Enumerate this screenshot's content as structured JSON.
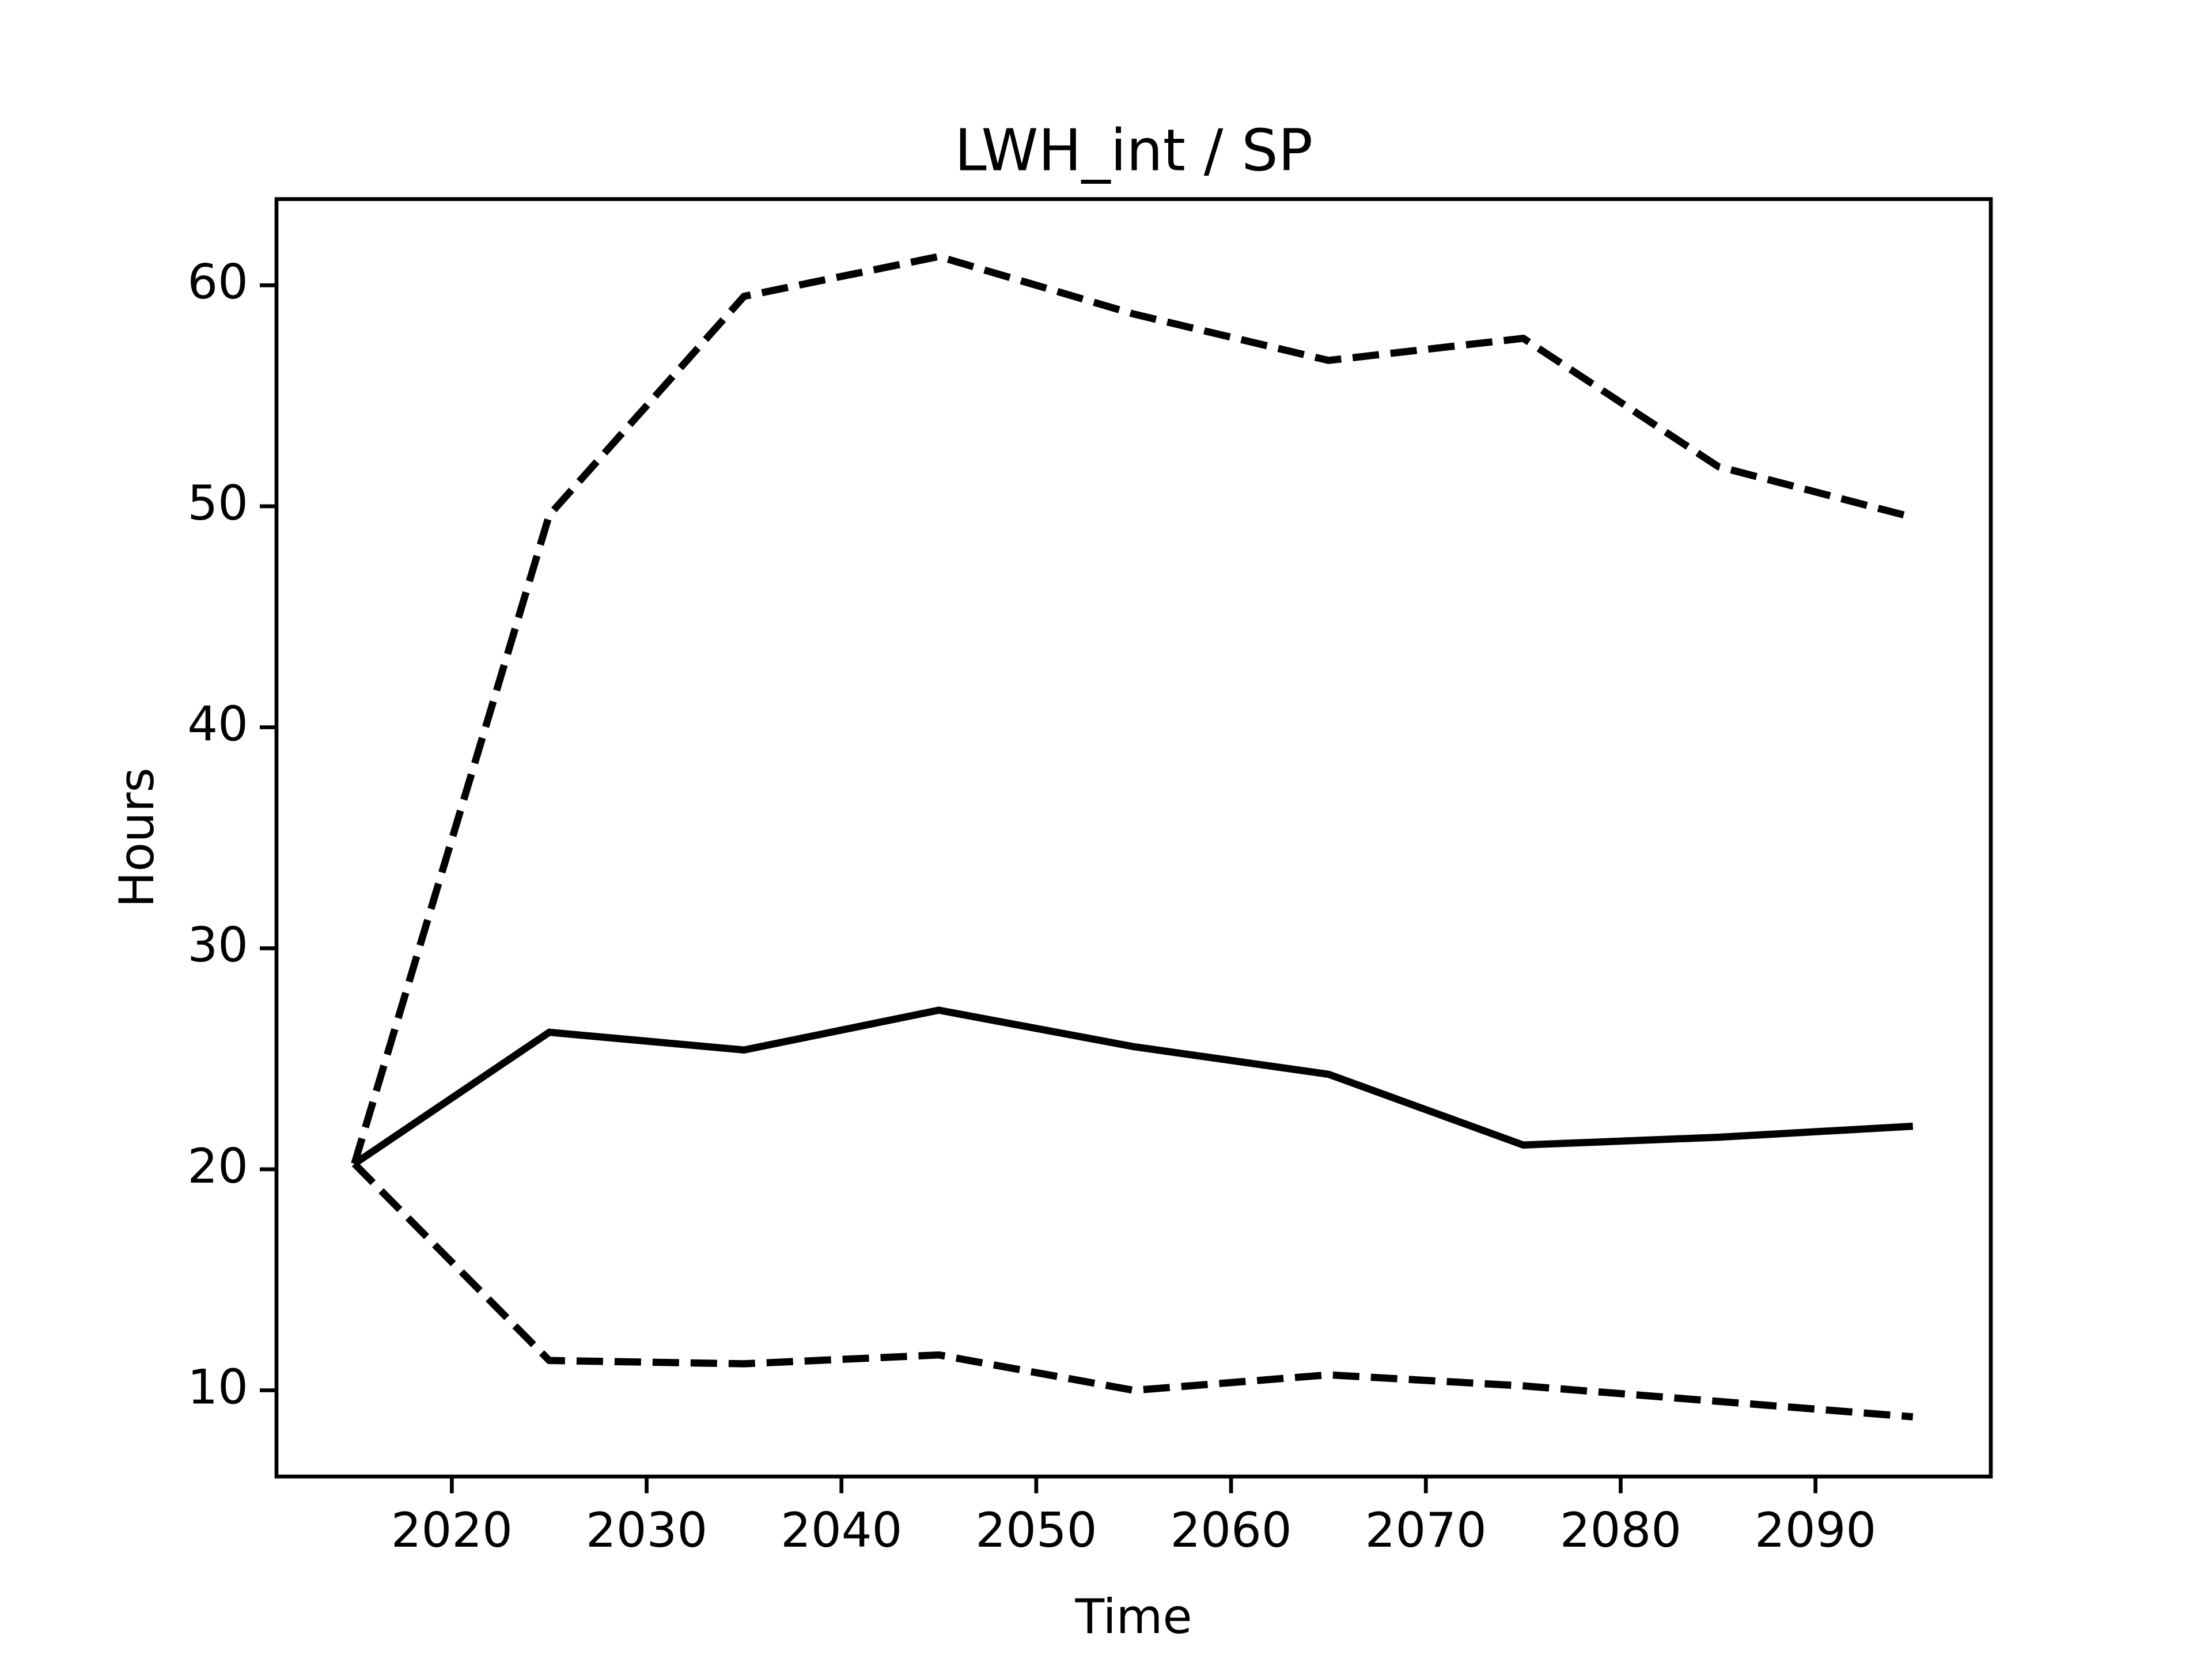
{
  "chart_data": {
    "type": "line",
    "title": "LWH_int / SP",
    "x_label": "Time",
    "y_label": "Hours",
    "x": [
      2015,
      2025,
      2035,
      2045,
      2055,
      2065,
      2075,
      2085,
      2095
    ],
    "series": [
      {
        "color": "#000000",
        "linestyle": "solid",
        "values": [
          20.25,
          26.2,
          25.4,
          27.2,
          25.55,
          24.3,
          21.1,
          21.45,
          21.95
        ]
      },
      {
        "color": "#000000",
        "linestyle": "dashed",
        "values": [
          20.25,
          49.6,
          59.5,
          61.3,
          58.7,
          56.6,
          57.6,
          51.8,
          49.5
        ]
      },
      {
        "color": "#000000",
        "linestyle": "dashed",
        "values": [
          20.25,
          11.35,
          11.2,
          11.6,
          10.0,
          10.7,
          10.2,
          9.5,
          8.8
        ]
      }
    ],
    "xlim": [
      2011,
      2099
    ],
    "xticks": [
      2020,
      2030,
      2040,
      2050,
      2060,
      2070,
      2080,
      2090
    ],
    "ylim": [
      6.1,
      63.9
    ],
    "yticks": [
      10,
      20,
      30,
      40,
      50,
      60
    ],
    "grid": false
  }
}
